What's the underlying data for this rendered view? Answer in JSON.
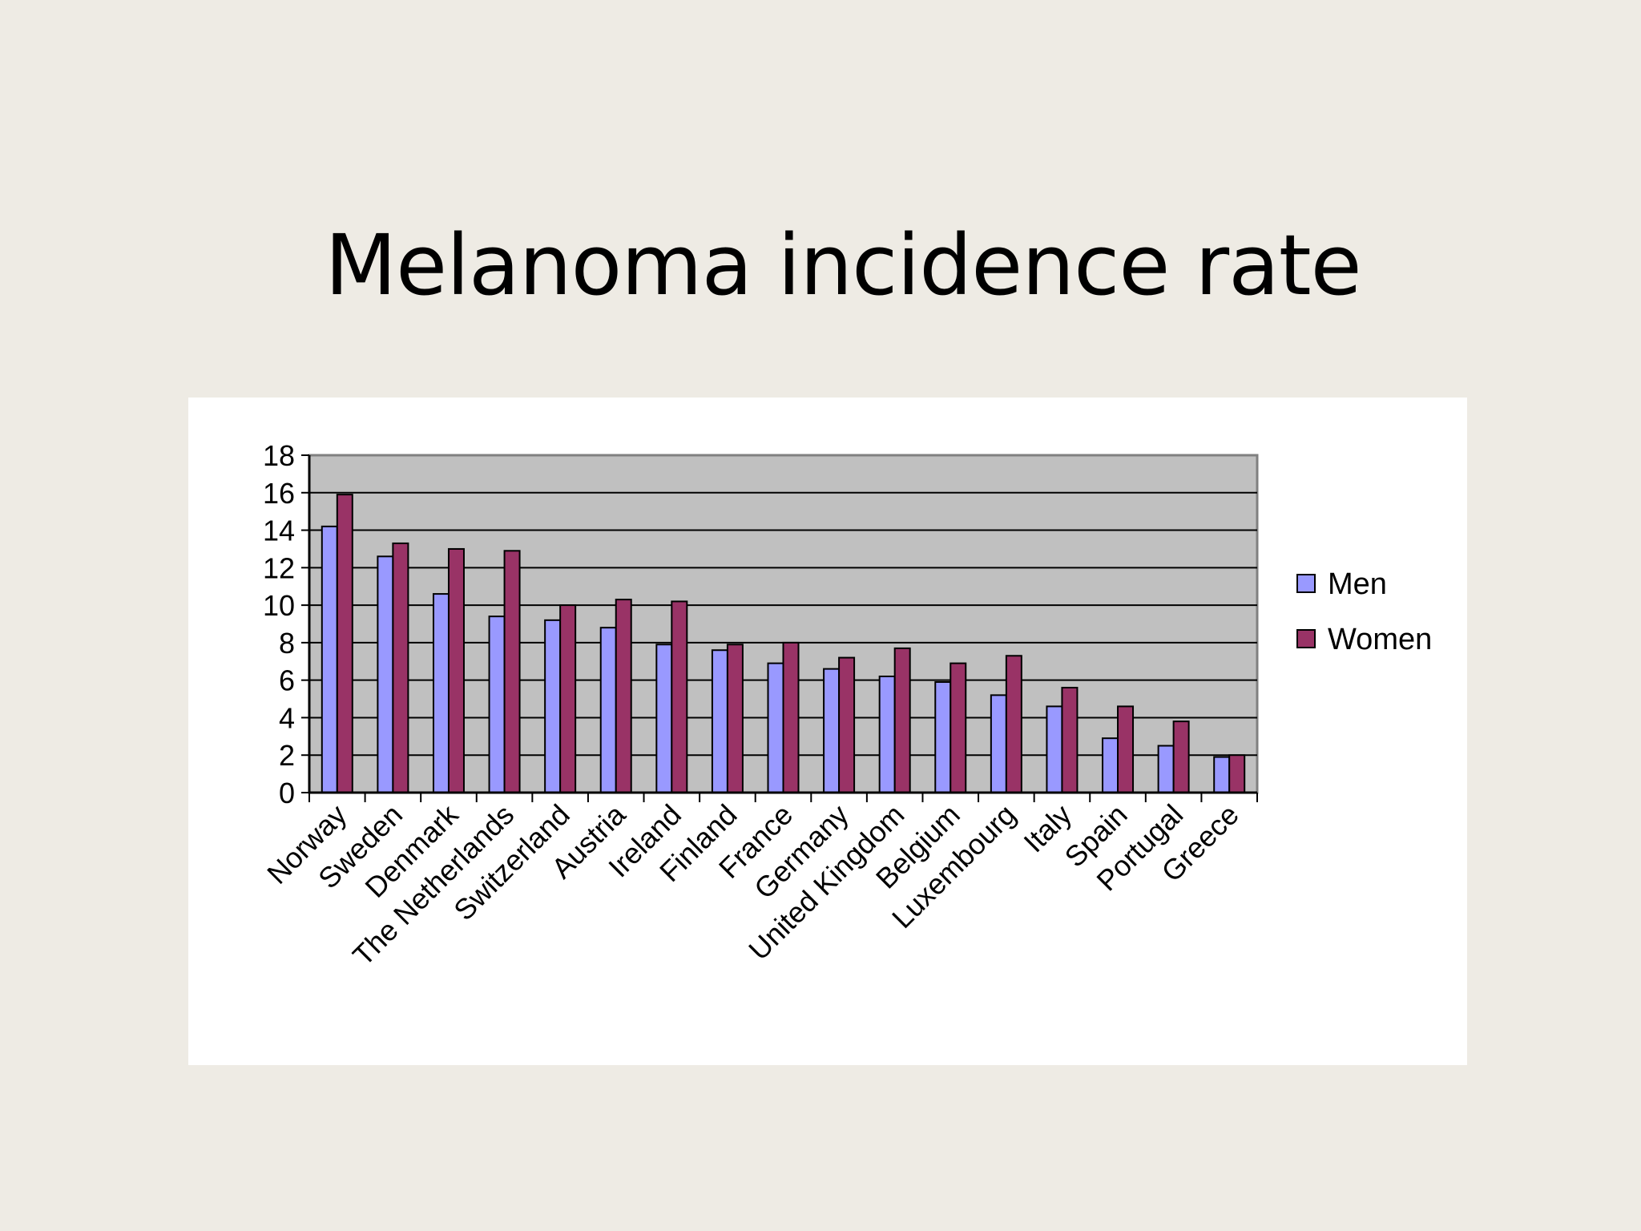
{
  "slide": {
    "title": "Melanoma incidence rate"
  },
  "chart_data": {
    "type": "bar",
    "categories": [
      "Norway",
      "Sweden",
      "Denmark",
      "The Netherlands",
      "Switzerland",
      "Austria",
      "Ireland",
      "Finland",
      "France",
      "Germany",
      "United Kingdom",
      "Belgium",
      "Luxembourg",
      "Italy",
      "Spain",
      "Portugal",
      "Greece"
    ],
    "series": [
      {
        "name": "Men",
        "color": "#9999ff",
        "values": [
          14.2,
          12.6,
          10.6,
          9.4,
          9.2,
          8.8,
          7.9,
          7.6,
          6.9,
          6.6,
          6.2,
          5.9,
          5.2,
          4.6,
          2.9,
          2.5,
          1.9
        ]
      },
      {
        "name": "Women",
        "color": "#993366",
        "values": [
          15.9,
          13.3,
          13.0,
          12.9,
          10.0,
          10.3,
          10.2,
          7.9,
          8.0,
          7.2,
          7.7,
          6.9,
          7.3,
          5.6,
          4.6,
          3.8,
          2.0
        ]
      }
    ],
    "ylim": [
      0,
      18
    ],
    "yticks": [
      0,
      2,
      4,
      6,
      8,
      10,
      12,
      14,
      16,
      18
    ],
    "grid": true,
    "plot_background": "#c0c0c0",
    "legend_position": "right"
  }
}
